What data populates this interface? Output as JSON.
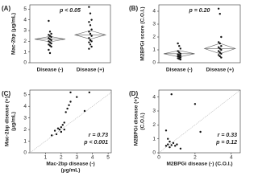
{
  "chart_data": [
    {
      "type": "strip",
      "title": "(A)",
      "ylabel": [
        "Mac-2bp (μg/mL)"
      ],
      "categories": [
        "Disease (-)",
        "Disease (+)"
      ],
      "series": [
        {
          "values": [
            3.9,
            2.9,
            2.7,
            2.6,
            2.5,
            2.4,
            2.3,
            2.2,
            2.1,
            2.0,
            1.9,
            1.8,
            1.7,
            1.6,
            1.5,
            1.2,
            0.9
          ]
        },
        {
          "values": [
            5.2,
            4.6,
            4.0,
            3.8,
            3.5,
            3.1,
            2.9,
            2.7,
            2.5,
            2.3,
            2.1,
            2.0,
            1.9,
            1.7,
            1.5,
            1.3
          ]
        }
      ],
      "diamonds": [
        {
          "mean": 2.2,
          "lower": 1.95,
          "upper": 2.45
        },
        {
          "mean": 2.6,
          "lower": 2.2,
          "upper": 3.0
        }
      ],
      "annotations": [
        "p < 0.05"
      ],
      "ylim": [
        0,
        5.4
      ],
      "yticks": [
        0,
        1,
        2,
        3,
        4,
        5
      ],
      "color": "#111"
    },
    {
      "type": "strip",
      "title": "(B)",
      "ylabel": [
        "M2BPGi score (C.O.I.)"
      ],
      "categories": [
        "Disease (-)",
        "Disease (+)"
      ],
      "series": [
        {
          "values": [
            1.5,
            1.3,
            1.1,
            0.9,
            0.8,
            0.7,
            0.65,
            0.6,
            0.55,
            0.5,
            0.45,
            0.4,
            0.35,
            0.3,
            0.25
          ]
        },
        {
          "values": [
            4.2,
            3.8,
            2.0,
            1.6,
            1.5,
            1.3,
            1.2,
            1.1,
            1.0,
            0.9,
            0.8,
            0.7,
            0.6,
            0.5,
            0.4
          ]
        }
      ],
      "diamonds": [
        {
          "mean": 0.7,
          "lower": 0.45,
          "upper": 0.95
        },
        {
          "mean": 1.1,
          "lower": 0.7,
          "upper": 1.5
        }
      ],
      "annotations": [
        "p = 0.20"
      ],
      "ylim": [
        0,
        4.5
      ],
      "yticks": [
        0,
        1,
        2,
        3,
        4
      ],
      "color": "#111"
    },
    {
      "type": "scatter",
      "title": "(C)",
      "ylabel": [
        "Mac-2bp disease (+)",
        "(μg/mL)"
      ],
      "xlabel": [
        "Mac-2bp disease (-)",
        "(μg/mL)"
      ],
      "x": [
        1.4,
        1.6,
        1.7,
        1.8,
        1.9,
        2.0,
        2.0,
        2.1,
        2.2,
        2.2,
        2.3,
        2.4,
        2.5,
        2.6,
        2.6,
        3.0,
        3.5,
        3.8
      ],
      "y": [
        1.5,
        1.9,
        1.6,
        2.1,
        2.0,
        1.8,
        2.2,
        2.4,
        2.0,
        2.6,
        3.5,
        3.8,
        4.1,
        4.4,
        5.2,
        4.8,
        3.6,
        5.2
      ],
      "annotations": [
        "r = 0.73",
        "p < 0.001"
      ],
      "xlim": [
        0,
        5.2
      ],
      "ylim": [
        0,
        5.4
      ],
      "xticks": [
        1,
        2,
        3,
        4,
        5
      ],
      "yticks": [
        0,
        1,
        2,
        3,
        4,
        5
      ],
      "color": "#111"
    },
    {
      "type": "scatter",
      "title": "(D)",
      "ylabel": [
        "M2BPGi disease (+)",
        "(C.O.I.)"
      ],
      "xlabel": [
        "M2BPGi disease (-) (C.O.I.)"
      ],
      "x": [
        0.4,
        0.5,
        0.6,
        0.6,
        0.7,
        0.8,
        0.9,
        1.0,
        0.5,
        0.4,
        0.7,
        2.0,
        2.3,
        1.2
      ],
      "y": [
        0.5,
        0.6,
        0.4,
        0.8,
        0.55,
        0.7,
        0.5,
        0.6,
        1.0,
        1.6,
        4.2,
        3.5,
        1.5,
        0.3
      ],
      "annotations": [
        "r = 0.33",
        "p = 0.12"
      ],
      "xlim": [
        0,
        4.5
      ],
      "ylim": [
        0,
        4.5
      ],
      "xticks": [
        0,
        2,
        4
      ],
      "yticks": [
        0,
        1,
        2,
        3,
        4
      ],
      "color": "#111"
    }
  ]
}
